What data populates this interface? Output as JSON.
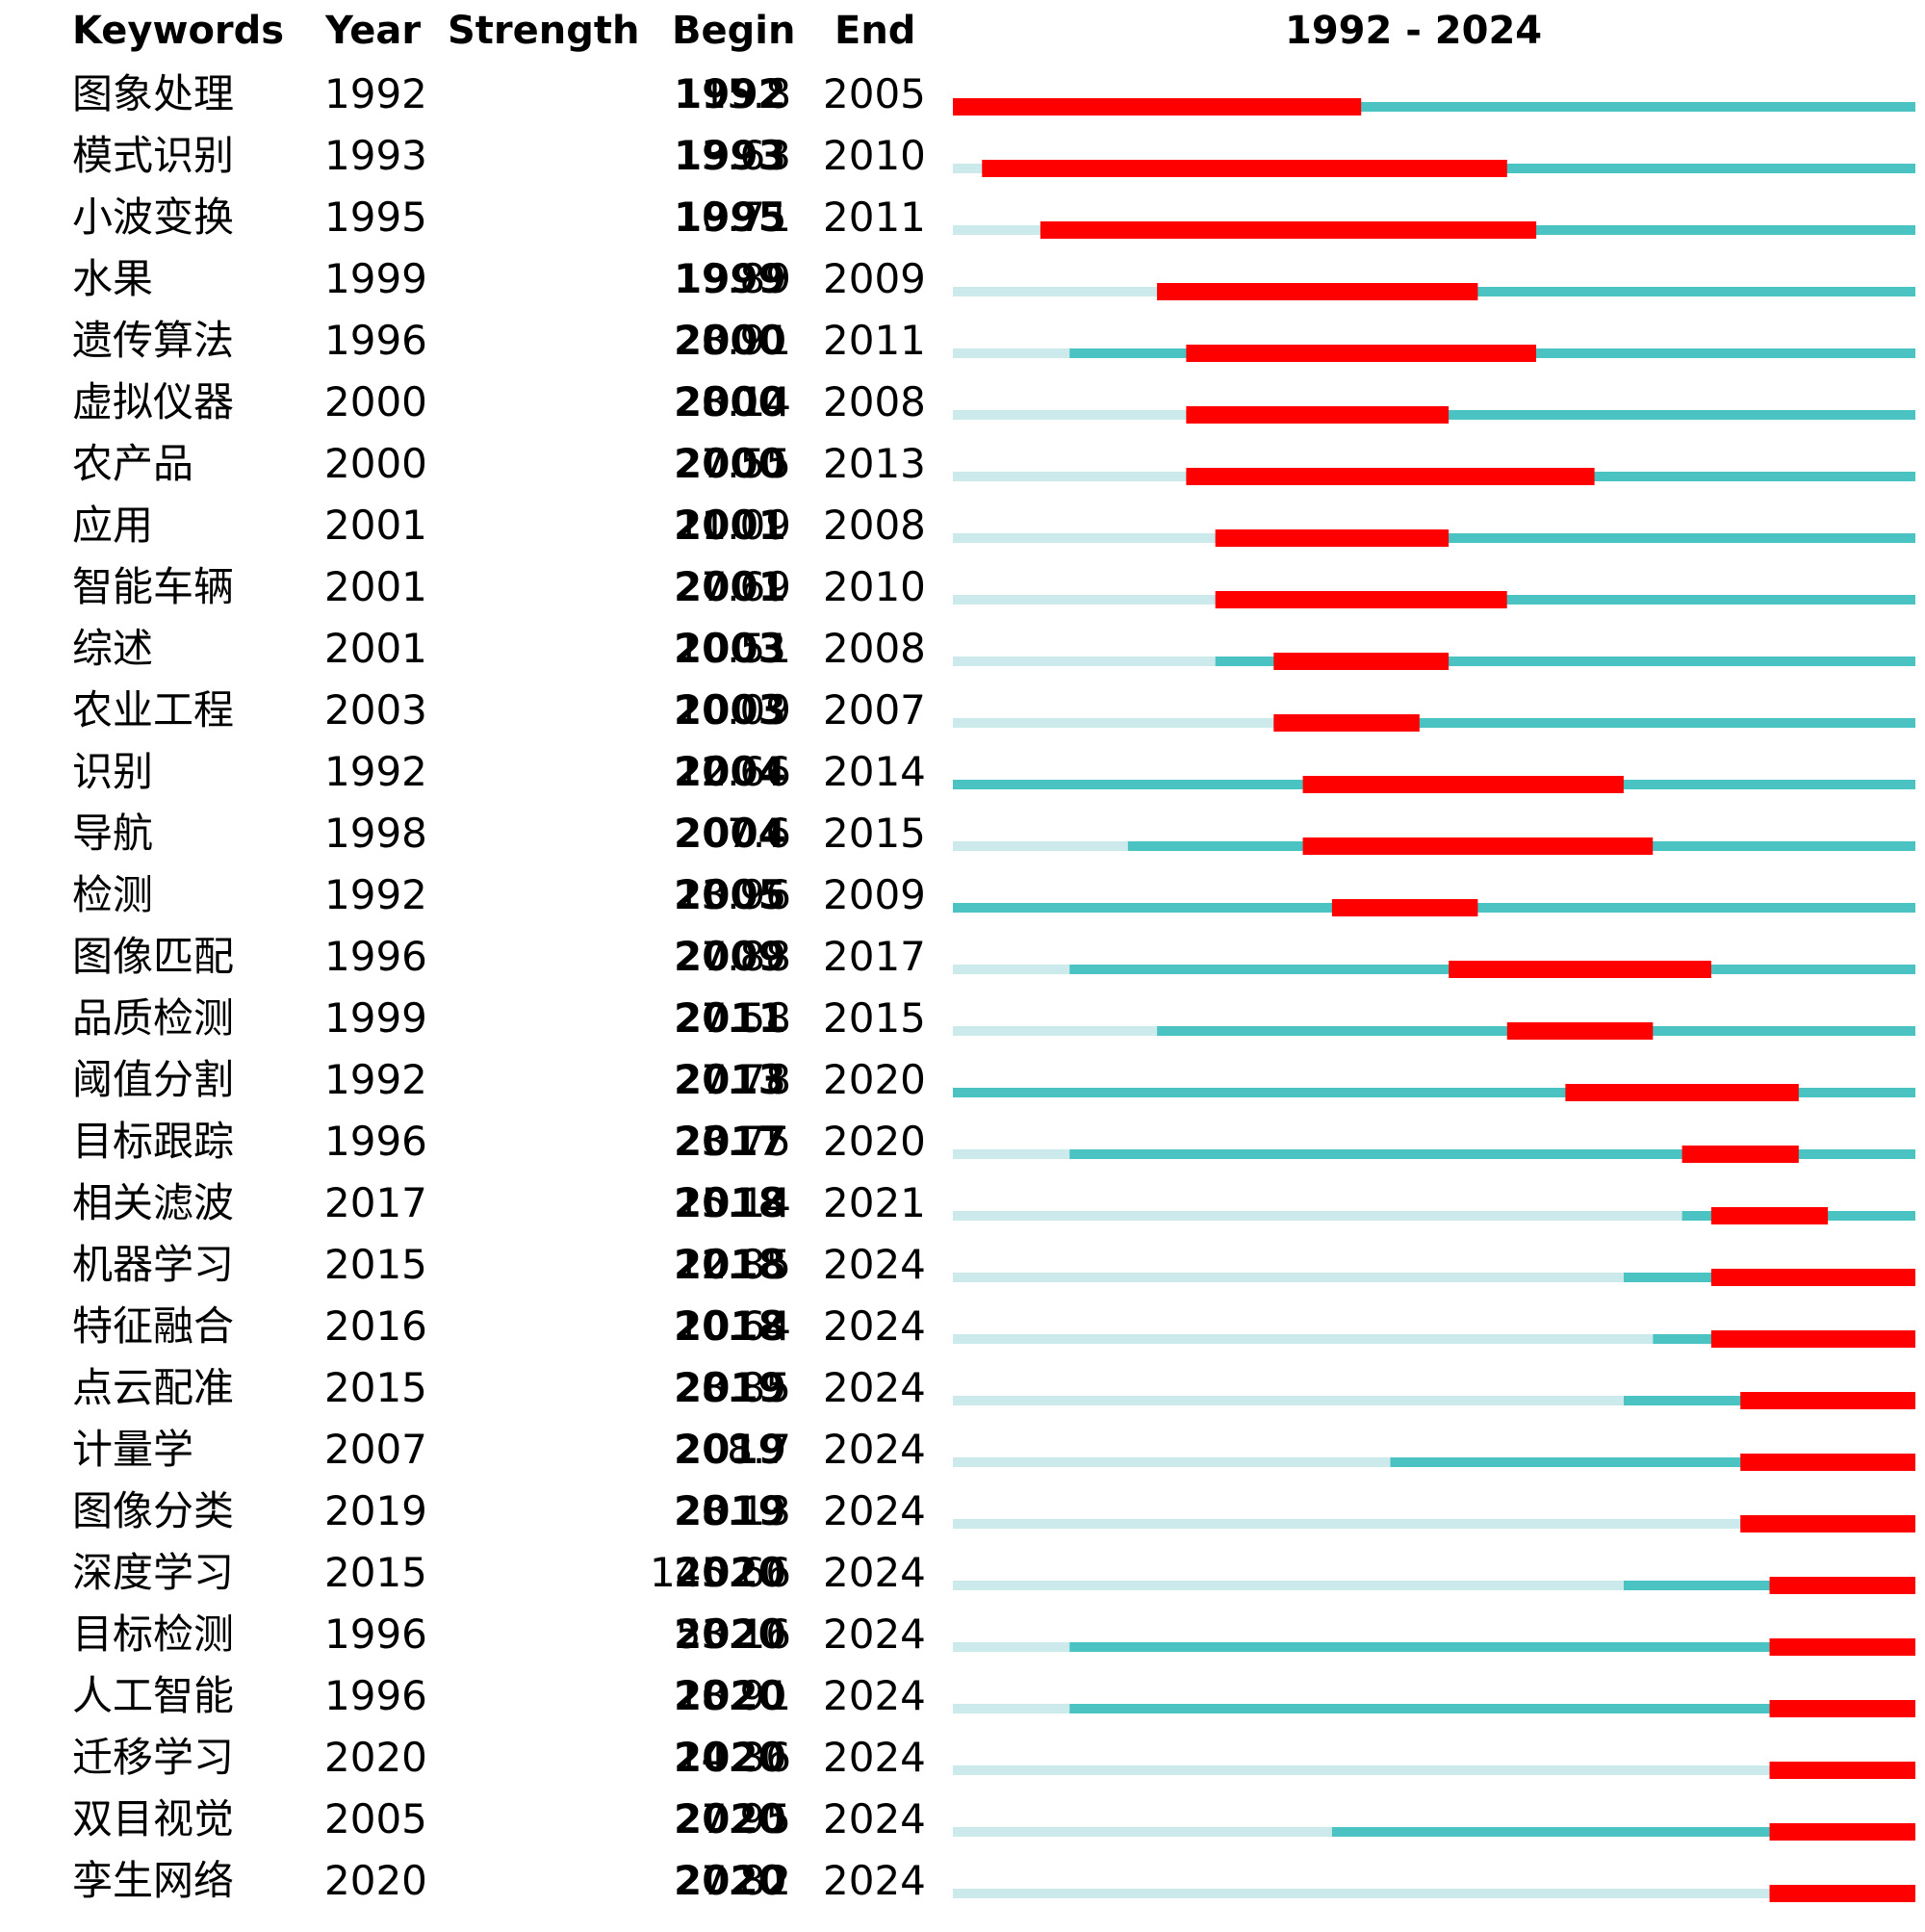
{
  "chart_data": {
    "type": "burst-timeline",
    "headers": {
      "keywords": "Keywords",
      "year": "Year",
      "strength": "Strength",
      "begin": "Begin",
      "end": "End",
      "range": "1992 - 2024"
    },
    "range": [
      1992,
      2024
    ],
    "colors": {
      "burst": "#ff0000",
      "active": "#4bc3c3",
      "inactive": "#cce9ec"
    },
    "rows": [
      {
        "keyword": "图象处理",
        "year": "1992",
        "strength": "15.8",
        "begin": "1992",
        "end": "2005"
      },
      {
        "keyword": "模式识别",
        "year": "1993",
        "strength": "13.63",
        "begin": "1993",
        "end": "2010"
      },
      {
        "keyword": "小波变换",
        "year": "1995",
        "strength": "10.71",
        "begin": "1995",
        "end": "2011"
      },
      {
        "keyword": "水果",
        "year": "1999",
        "strength": "9.89",
        "begin": "1999",
        "end": "2009"
      },
      {
        "keyword": "遗传算法",
        "year": "1996",
        "strength": "8.91",
        "begin": "2000",
        "end": "2011"
      },
      {
        "keyword": "虚拟仪器",
        "year": "2000",
        "strength": "8.14",
        "begin": "2000",
        "end": "2008"
      },
      {
        "keyword": "农产品",
        "year": "2000",
        "strength": "7.55",
        "begin": "2000",
        "end": "2013"
      },
      {
        "keyword": "应用",
        "year": "2001",
        "strength": "11.09",
        "begin": "2001",
        "end": "2008"
      },
      {
        "keyword": "智能车辆",
        "year": "2001",
        "strength": "7.69",
        "begin": "2001",
        "end": "2010"
      },
      {
        "keyword": "综述",
        "year": "2001",
        "strength": "10.51",
        "begin": "2003",
        "end": "2008"
      },
      {
        "keyword": "农业工程",
        "year": "2003",
        "strength": "10.09",
        "begin": "2003",
        "end": "2007"
      },
      {
        "keyword": "识别",
        "year": "1992",
        "strength": "12.66",
        "begin": "2004",
        "end": "2014"
      },
      {
        "keyword": "导航",
        "year": "1998",
        "strength": "7.6",
        "begin": "2004",
        "end": "2015"
      },
      {
        "keyword": "检测",
        "year": "1992",
        "strength": "13.96",
        "begin": "2005",
        "end": "2009"
      },
      {
        "keyword": "图像匹配",
        "year": "1996",
        "strength": "7.88",
        "begin": "2009",
        "end": "2017"
      },
      {
        "keyword": "品质检测",
        "year": "1999",
        "strength": "7.58",
        "begin": "2011",
        "end": "2015"
      },
      {
        "keyword": "阈值分割",
        "year": "1992",
        "strength": "7.78",
        "begin": "2013",
        "end": "2020"
      },
      {
        "keyword": "目标跟踪",
        "year": "1996",
        "strength": "23.75",
        "begin": "2017",
        "end": "2020"
      },
      {
        "keyword": "相关滤波",
        "year": "2017",
        "strength": "15.14",
        "begin": "2018",
        "end": "2021"
      },
      {
        "keyword": "机器学习",
        "year": "2015",
        "strength": "12.85",
        "begin": "2018",
        "end": "2024"
      },
      {
        "keyword": "特征融合",
        "year": "2016",
        "strength": "10.64",
        "begin": "2018",
        "end": "2024"
      },
      {
        "keyword": "点云配准",
        "year": "2015",
        "strength": "8.85",
        "begin": "2019",
        "end": "2024"
      },
      {
        "keyword": "计量学",
        "year": "2007",
        "strength": "8.7",
        "begin": "2019",
        "end": "2024"
      },
      {
        "keyword": "图像分类",
        "year": "2019",
        "strength": "8.13",
        "begin": "2019",
        "end": "2024"
      },
      {
        "keyword": "深度学习",
        "year": "2015",
        "strength": "145.66",
        "begin": "2020",
        "end": "2024"
      },
      {
        "keyword": "目标检测",
        "year": "1996",
        "strength": "53.16",
        "begin": "2020",
        "end": "2024"
      },
      {
        "keyword": "人工智能",
        "year": "1996",
        "strength": "18.91",
        "begin": "2020",
        "end": "2024"
      },
      {
        "keyword": "迁移学习",
        "year": "2020",
        "strength": "14.36",
        "begin": "2020",
        "end": "2024"
      },
      {
        "keyword": "双目视觉",
        "year": "2005",
        "strength": "7.95",
        "begin": "2020",
        "end": "2024"
      },
      {
        "keyword": "孪生网络",
        "year": "2020",
        "strength": "7.82",
        "begin": "2020",
        "end": "2024"
      }
    ]
  }
}
